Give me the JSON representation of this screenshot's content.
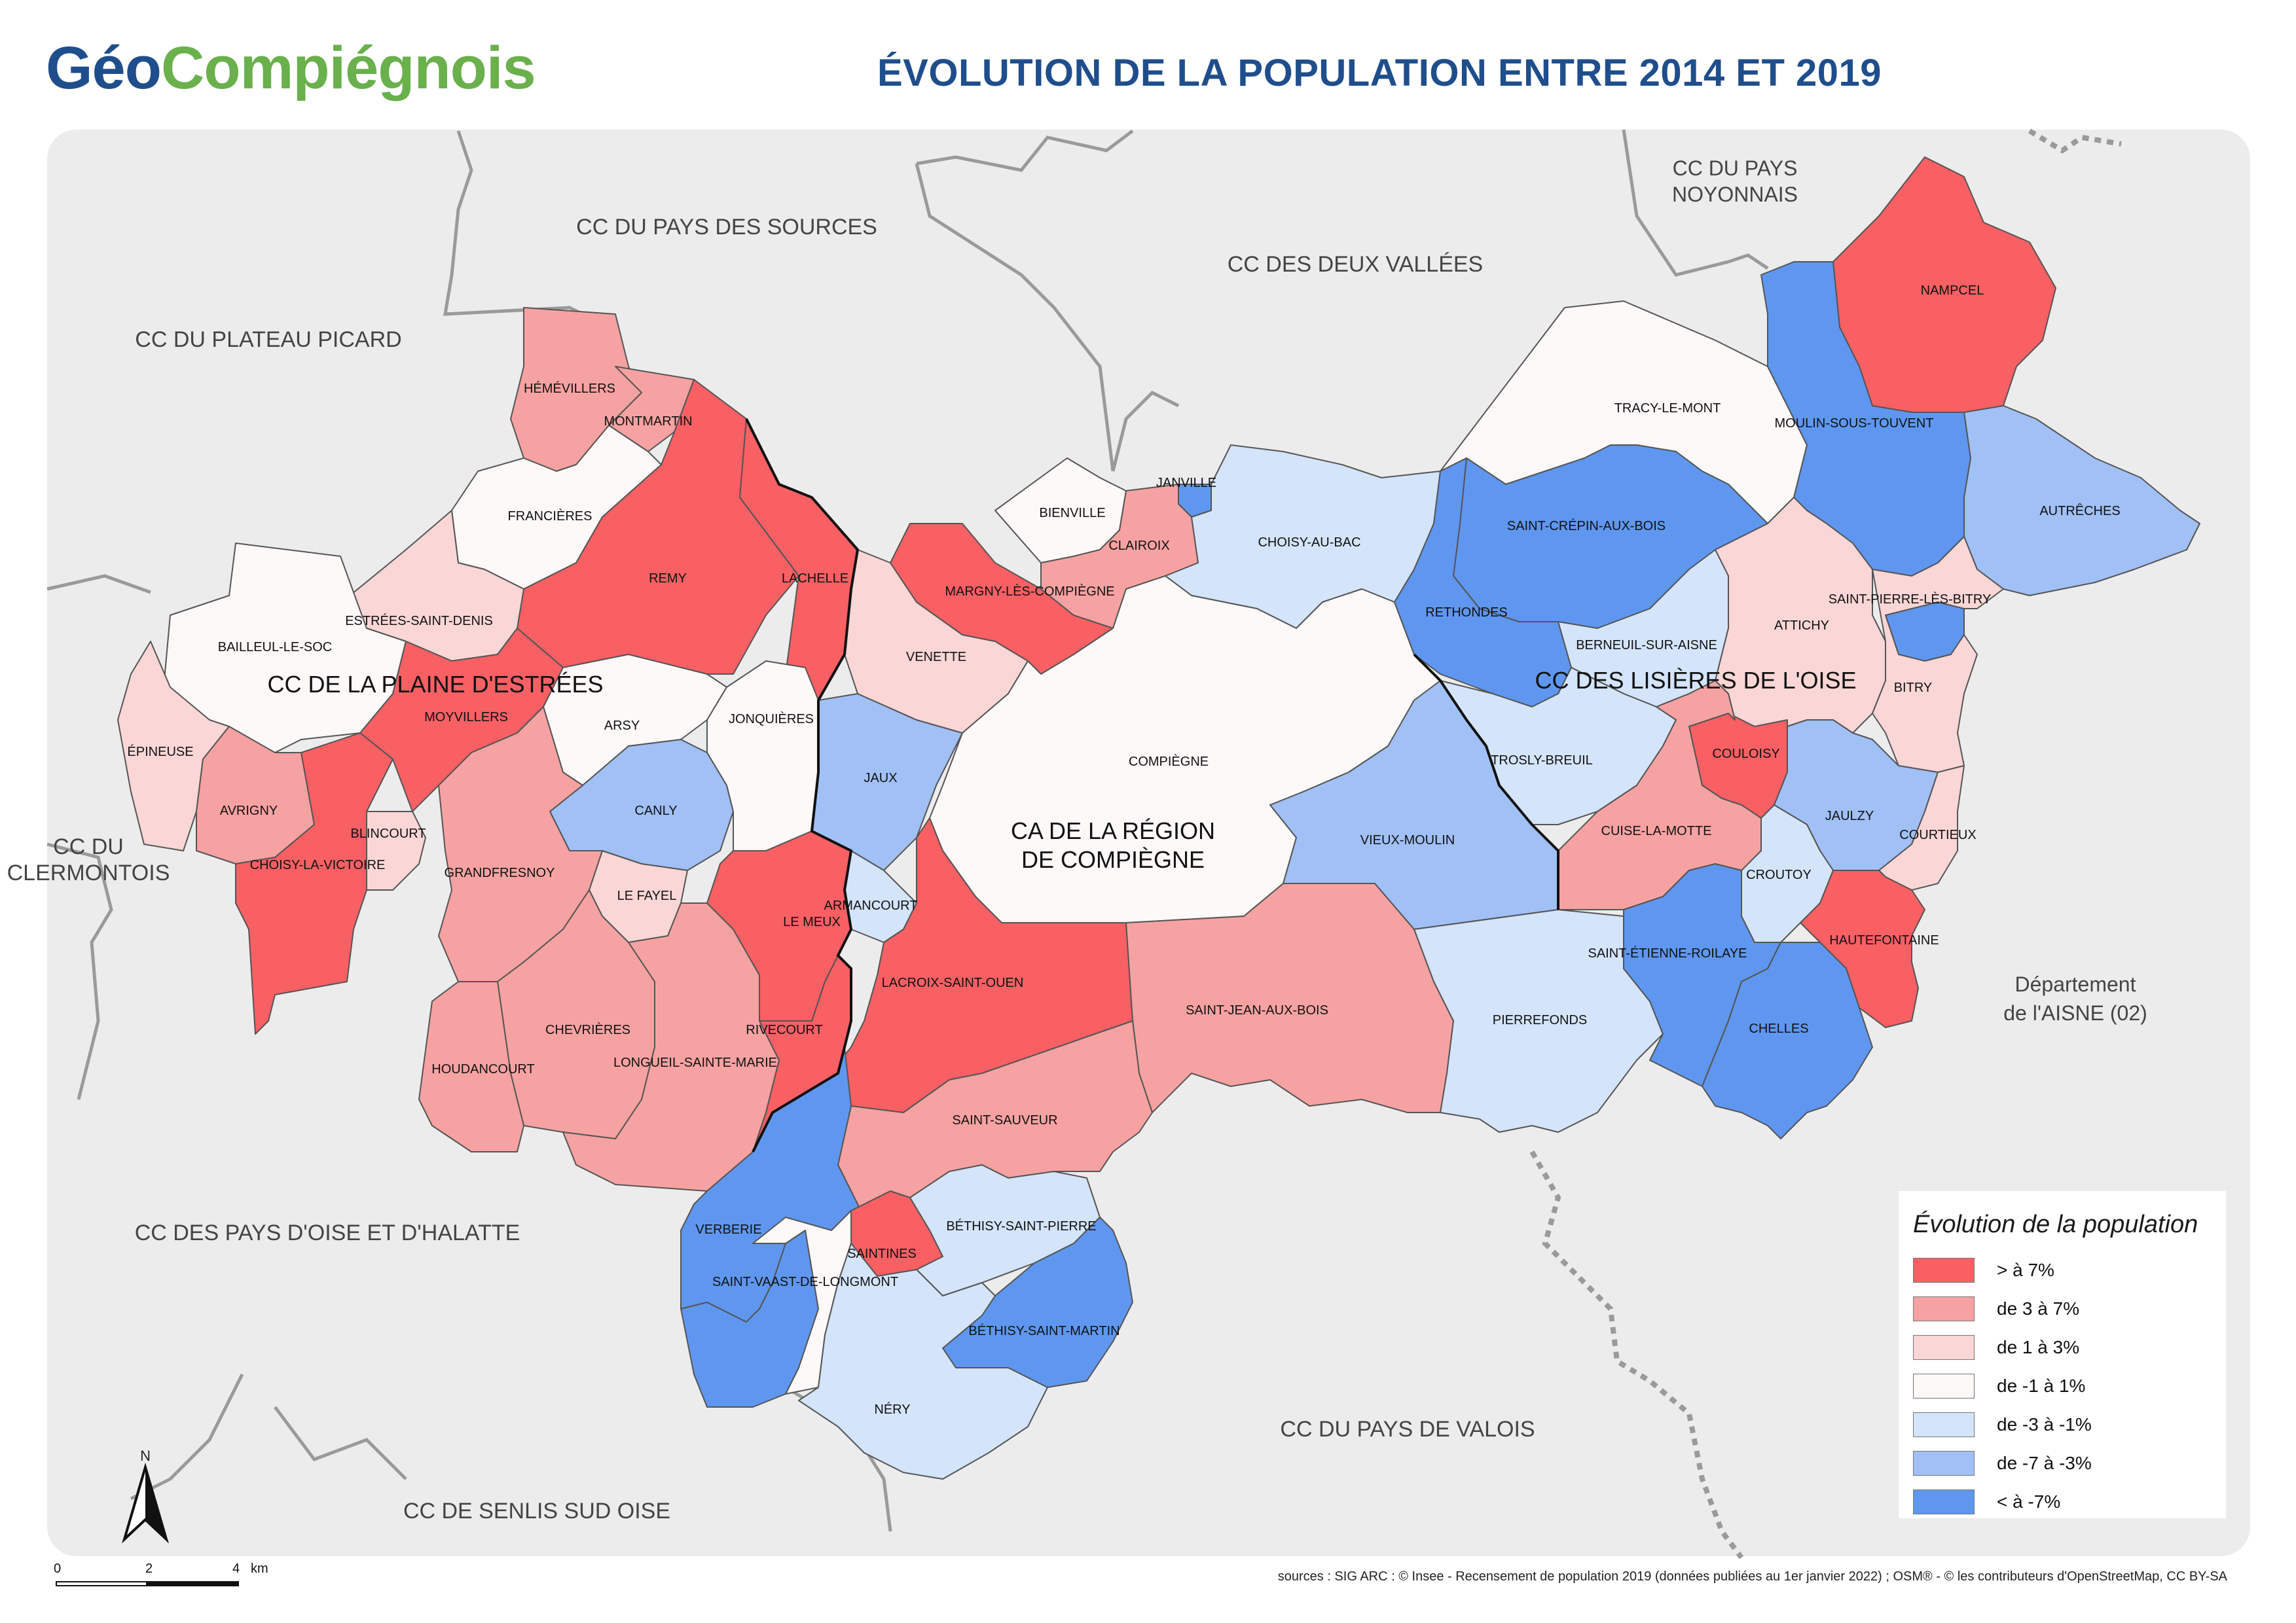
{
  "header": {
    "logo_part1": "Géo",
    "logo_part2": "Compiégnois",
    "title": "ÉVOLUTION DE LA POPULATION ENTRE 2014 ET 2019"
  },
  "colors": {
    "background": "#ececec",
    "title": "#1f4e8c",
    "logo_green": "#6ab04c",
    "gt7": "#f86064",
    "3to7": "#f7a2a2",
    "1to3": "#fbd6d6",
    "m1to1": "#fcf9f8",
    "m3tom1": "#d4e4fb",
    "m7tom3": "#a0c0f6",
    "lt_m7": "#5f97f0"
  },
  "legend": {
    "title": "Évolution de la population",
    "items": [
      {
        "label": "> à 7%",
        "color": "#f86064"
      },
      {
        "label": "de 3 à 7%",
        "color": "#f7a2a2"
      },
      {
        "label": "de 1 à 3%",
        "color": "#fbd6d6"
      },
      {
        "label": "de -1 à 1%",
        "color": "#fcf9f8"
      },
      {
        "label": "de -3 à -1%",
        "color": "#d4e4fb"
      },
      {
        "label": "de -7 à -3%",
        "color": "#a0c0f6"
      },
      {
        "label": "< à -7%",
        "color": "#5f97f0"
      }
    ]
  },
  "neighbors": [
    "CC DU PAYS DES SOURCES",
    "CC DES DEUX VALLÉES",
    "CC DU PAYS NOYONNAIS",
    "CC DU PLATEAU PICARD",
    "CC DU CLERMONTOIS",
    "Département de l'AISNE (02)",
    "CC DES PAYS D'OISE ET D'HALATTE",
    "CC DU PAYS DE VALOIS",
    "CC DE SENLIS SUD OISE"
  ],
  "epci": [
    "CC DE LA PLAINE D'ESTRÉES",
    "CC DES LISIÈRES DE L'OISE",
    "CA DE LA RÉGION DE COMPIÈGNE"
  ],
  "communes": [
    {
      "name": "HÉMÉVILLERS",
      "class": "3to7"
    },
    {
      "name": "MONTMARTIN",
      "class": "3to7"
    },
    {
      "name": "FRANCIÈRES",
      "class": "m1to1"
    },
    {
      "name": "REMY",
      "class": "gt7"
    },
    {
      "name": "LACHELLE",
      "class": "gt7"
    },
    {
      "name": "ESTRÉES-SAINT-DENIS",
      "class": "1to3"
    },
    {
      "name": "BAILLEUL-LE-SOC",
      "class": "m1to1"
    },
    {
      "name": "MOYVILLERS",
      "class": "gt7"
    },
    {
      "name": "ARSY",
      "class": "m1to1"
    },
    {
      "name": "ÉPINEUSE",
      "class": "1to3"
    },
    {
      "name": "AVRIGNY",
      "class": "3to7"
    },
    {
      "name": "CHOISY-LA-VICTOIRE",
      "class": "gt7"
    },
    {
      "name": "BLINCOURT",
      "class": "1to3"
    },
    {
      "name": "CANLY",
      "class": "m7tom3"
    },
    {
      "name": "GRANDFRESNOY",
      "class": "3to7"
    },
    {
      "name": "LE FAYEL",
      "class": "1to3"
    },
    {
      "name": "CHEVRIÈRES",
      "class": "3to7"
    },
    {
      "name": "HOUDANCOURT",
      "class": "3to7"
    },
    {
      "name": "LONGUEIL-SAINTE-MARIE",
      "class": "3to7"
    },
    {
      "name": "JONQUIÈRES",
      "class": "m1to1"
    },
    {
      "name": "JAUX",
      "class": "m7tom3"
    },
    {
      "name": "VENETTE",
      "class": "1to3"
    },
    {
      "name": "MARGNY-LÈS-COMPIÈGNE",
      "class": "gt7"
    },
    {
      "name": "BIENVILLE",
      "class": "m1to1"
    },
    {
      "name": "JANVILLE",
      "class": "lt_m7"
    },
    {
      "name": "CLAIROIX",
      "class": "3to7"
    },
    {
      "name": "CHOISY-AU-BAC",
      "class": "m3tom1"
    },
    {
      "name": "COMPIÈGNE",
      "class": "m1to1"
    },
    {
      "name": "ARMANCOURT",
      "class": "m3tom1"
    },
    {
      "name": "LE MEUX",
      "class": "gt7"
    },
    {
      "name": "LACROIX-SAINT-OUEN",
      "class": "gt7"
    },
    {
      "name": "RIVECOURT",
      "class": "gt7"
    },
    {
      "name": "SAINT-JEAN-AUX-BOIS",
      "class": "3to7"
    },
    {
      "name": "SAINT-SAUVEUR",
      "class": "3to7"
    },
    {
      "name": "VIEUX-MOULIN",
      "class": "m7tom3"
    },
    {
      "name": "PIERREFONDS",
      "class": "m3tom1"
    },
    {
      "name": "VERBERIE",
      "class": "lt_m7"
    },
    {
      "name": "SAINTINES",
      "class": "gt7"
    },
    {
      "name": "SAINT-VAAST-DE-LONGMONT",
      "class": "m1to1"
    },
    {
      "name": "BÉTHISY-SAINT-PIERRE",
      "class": "m3tom1"
    },
    {
      "name": "BÉTHISY-SAINT-MARTIN",
      "class": "lt_m7"
    },
    {
      "name": "NÉRY",
      "class": "m3tom1"
    },
    {
      "name": "TRACY-LE-MONT",
      "class": "m1to1"
    },
    {
      "name": "SAINT-CRÉPIN-AUX-BOIS",
      "class": "lt_m7"
    },
    {
      "name": "RETHONDES",
      "class": "lt_m7"
    },
    {
      "name": "BERNEUIL-SUR-AISNE",
      "class": "m3tom1"
    },
    {
      "name": "TROSLY-BREUIL",
      "class": "m3tom1"
    },
    {
      "name": "NAMPCEL",
      "class": "gt7"
    },
    {
      "name": "MOULIN-SOUS-TOUVENT",
      "class": "lt_m7"
    },
    {
      "name": "AUTRÊCHES",
      "class": "m7tom3"
    },
    {
      "name": "ATTICHY",
      "class": "1to3"
    },
    {
      "name": "SAINT-PIERRE-LÈS-BITRY",
      "class": "lt_m7"
    },
    {
      "name": "BITRY",
      "class": "1to3"
    },
    {
      "name": "COULOISY",
      "class": "gt7"
    },
    {
      "name": "CUISE-LA-MOTTE",
      "class": "3to7"
    },
    {
      "name": "JAULZY",
      "class": "m7tom3"
    },
    {
      "name": "COURTIEUX",
      "class": "1to3"
    },
    {
      "name": "CROUTOY",
      "class": "m3tom1"
    },
    {
      "name": "HAUTEFONTAINE",
      "class": "gt7"
    },
    {
      "name": "SAINT-ÉTIENNE-ROILAYE",
      "class": "lt_m7"
    },
    {
      "name": "CHELLES",
      "class": "lt_m7"
    }
  ],
  "scale": {
    "labels": [
      "0",
      "2",
      "4"
    ],
    "unit": "km"
  },
  "sources": "sources : SIG ARC : © Insee - Recensement de population 2019 (données publiées au 1er janvier 2022) ; OSM® - © les contributeurs d'OpenStreetMap, CC BY-SA"
}
